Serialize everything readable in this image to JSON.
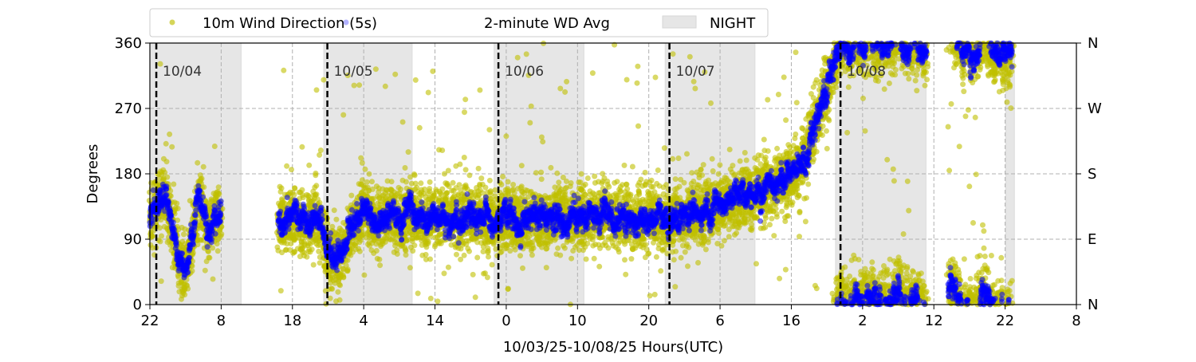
{
  "chart_data": {
    "type": "scatter",
    "xlabel": "10/03/25-10/08/25  Hours(UTC)",
    "ylabel": "Degrees",
    "xlim_hours": [
      0,
      130
    ],
    "ylim": [
      0,
      360
    ],
    "x_tick_labels": [
      "22",
      "8",
      "18",
      "4",
      "14",
      "0",
      "10",
      "20",
      "6",
      "16",
      "2",
      "12",
      "22",
      "8"
    ],
    "x_tick_step_hours": 10,
    "y_ticks": [
      0,
      90,
      180,
      270,
      360
    ],
    "y_right_labels": [
      "N",
      "E",
      "S",
      "W",
      "N"
    ],
    "grid": true,
    "legend": {
      "placement": "top-left, above plot",
      "entries": [
        "10m Wind Direction (5s)",
        "2-minute WD Avg",
        "NIGHT"
      ]
    },
    "colors": {
      "wd5s": "#bfbf00",
      "avg": "#0000ff",
      "night": "#e6e6e6",
      "midnight": "#000000"
    },
    "day_markers": [
      {
        "label": "10/04",
        "hour": 0.9
      },
      {
        "label": "10/05",
        "hour": 24.9
      },
      {
        "label": "10/06",
        "hour": 48.9
      },
      {
        "label": "10/07",
        "hour": 72.9
      },
      {
        "label": "10/08",
        "hour": 96.9
      }
    ],
    "night_periods_hours": [
      [
        0.2,
        12.8
      ],
      [
        24.4,
        36.8
      ],
      [
        48.3,
        60.9
      ],
      [
        72.3,
        84.9
      ],
      [
        96.2,
        108.9
      ],
      [
        120.1,
        121.3
      ]
    ],
    "avg_series_hourly_start_hour": 0,
    "avg_series_hourly": [
      110,
      140,
      145,
      120,
      60,
      50,
      90,
      150,
      100,
      120,
      130,
      null,
      null,
      null,
      null,
      null,
      null,
      null,
      115,
      110,
      120,
      115,
      110,
      120,
      110,
      70,
      60,
      70,
      95,
      120,
      130,
      125,
      115,
      120,
      125,
      110,
      120,
      125,
      120,
      115,
      120,
      125,
      120,
      115,
      120,
      125,
      120,
      115,
      118,
      115,
      120,
      120,
      118,
      115,
      122,
      120,
      118,
      120,
      125,
      120,
      115,
      120,
      125,
      120,
      130,
      115,
      118,
      120,
      115,
      115,
      120,
      118,
      115,
      118,
      125,
      120,
      125,
      128,
      130,
      132,
      135,
      138,
      140,
      145,
      150,
      152,
      158,
      162,
      165,
      170,
      178,
      185,
      200,
      240,
      270,
      300,
      330,
      5,
      350,
      10,
      355,
      15,
      0,
      10,
      350,
      20,
      355,
      5,
      0,
      350,
      null,
      null,
      20,
      15,
      355,
      350,
      345,
      20,
      345,
      350,
      350,
      345
    ],
    "wd5s_spread_deg": 35
  }
}
